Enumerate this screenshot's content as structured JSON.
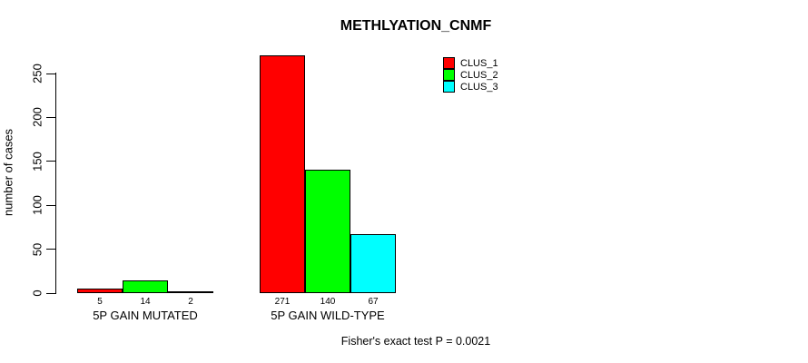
{
  "chart_data": {
    "type": "bar",
    "title": "METHLYATION_CNMF",
    "ylabel": "number of cases",
    "xlabel": "",
    "ylim": [
      0,
      250
    ],
    "yticks": [
      0,
      50,
      100,
      150,
      200,
      250
    ],
    "categories": [
      "5P GAIN MUTATED",
      "5P GAIN WILD-TYPE"
    ],
    "series": [
      {
        "name": "CLUS_1",
        "color": "#ff0000",
        "values": [
          5,
          271
        ]
      },
      {
        "name": "CLUS_2",
        "color": "#00ff00",
        "values": [
          14,
          140
        ]
      },
      {
        "name": "CLUS_3",
        "color": "#00ffff",
        "values": [
          2,
          67
        ]
      }
    ],
    "show_value_labels": true,
    "grid": false,
    "legend_position": "top-right",
    "annotation": "Fisher's exact test P = 0.0021",
    "colors": {
      "bar_border": "#000000",
      "axis": "#000000",
      "text": "#000000",
      "background": "#ffffff"
    }
  }
}
